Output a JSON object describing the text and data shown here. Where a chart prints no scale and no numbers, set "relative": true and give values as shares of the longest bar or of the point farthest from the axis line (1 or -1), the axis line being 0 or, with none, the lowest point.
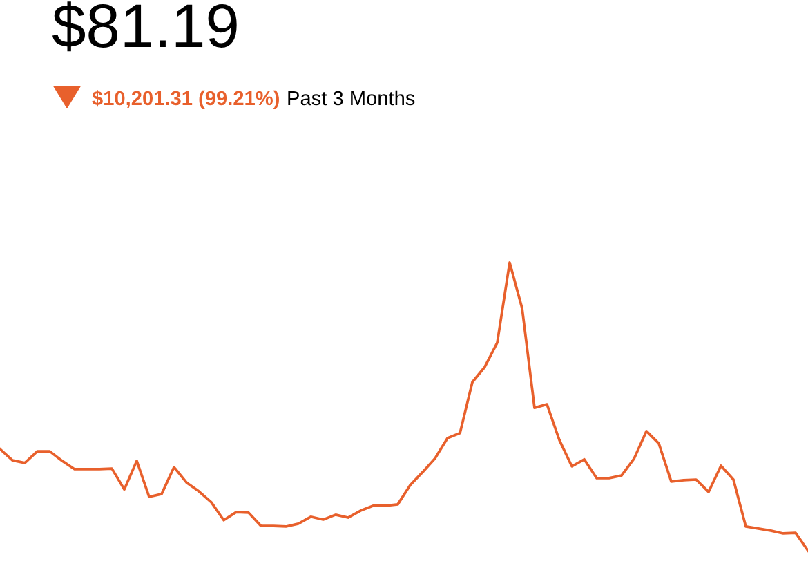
{
  "chart_data": {
    "type": "line",
    "title": "$81.19",
    "subtitle": "$10,201.31 (99.21%)",
    "annotations": [
      "Past 3 Months"
    ],
    "relative": true,
    "legend": false,
    "marker": "none",
    "line_style": "solid",
    "categories": [
      null,
      null,
      null,
      null,
      null,
      null,
      null,
      null,
      null,
      null,
      null,
      null,
      null,
      null,
      null,
      null,
      null,
      null,
      null,
      null,
      null,
      null,
      null,
      null,
      null,
      null,
      null,
      null,
      null,
      null,
      null,
      null,
      null,
      null,
      null,
      null,
      null,
      null,
      null,
      null,
      null,
      null,
      null,
      null,
      null,
      null,
      null,
      null,
      null,
      null,
      null,
      null,
      null,
      null,
      null,
      null,
      null,
      null,
      null,
      null,
      null,
      null,
      null,
      null,
      null,
      null
    ],
    "series": [
      {
        "color": "#e8602c",
        "values": [
          0.353,
          0.314,
          0.305,
          0.345,
          0.345,
          0.312,
          0.283,
          0.283,
          0.283,
          0.285,
          0.213,
          0.312,
          0.187,
          0.197,
          0.29,
          0.237,
          0.206,
          0.168,
          0.106,
          0.134,
          0.132,
          0.086,
          0.086,
          0.084,
          0.094,
          0.118,
          0.108,
          0.125,
          0.115,
          0.139,
          0.156,
          0.156,
          0.161,
          0.228,
          0.273,
          0.321,
          0.391,
          0.408,
          0.585,
          0.638,
          0.722,
          1,
          0.842,
          0.496,
          0.508,
          0.384,
          0.293,
          0.317,
          0.252,
          0.252,
          0.261,
          0.319,
          0.415,
          0.372,
          0.24,
          0.245,
          0.247,
          0.204,
          0.295,
          0.247,
          0.084,
          0.077,
          0.07,
          0.06,
          0.062,
          0
        ]
      }
    ]
  }
}
